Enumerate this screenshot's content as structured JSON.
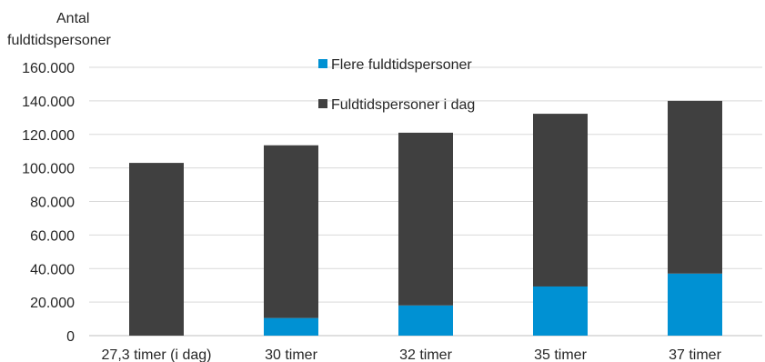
{
  "chart_data": {
    "type": "bar",
    "stacked": true,
    "ylabel": [
      "Antal",
      "fuldtidspersoner"
    ],
    "xlabel": "",
    "title": "",
    "categories": [
      "27,3 timer (i dag)",
      "30 timer",
      "32 timer",
      "35 timer",
      "37 timer"
    ],
    "series": [
      {
        "name": "Flere fuldtidspersoner",
        "color": "#0091D3",
        "values": [
          0,
          10500,
          18000,
          29300,
          37000
        ]
      },
      {
        "name": "Fuldtidspersoner i dag",
        "color": "#404040",
        "values": [
          103000,
          103000,
          103000,
          103000,
          103000
        ]
      }
    ],
    "ylim": [
      0,
      160000
    ],
    "yticks": [
      0,
      20000,
      40000,
      60000,
      80000,
      100000,
      120000,
      140000,
      160000
    ],
    "ytick_labels": [
      "0",
      "20.000",
      "40.000",
      "60.000",
      "80.000",
      "100.000",
      "120.000",
      "140.000",
      "160.000"
    ],
    "grid": true,
    "legend_position": "top-center",
    "legend_order": [
      0,
      1
    ]
  }
}
